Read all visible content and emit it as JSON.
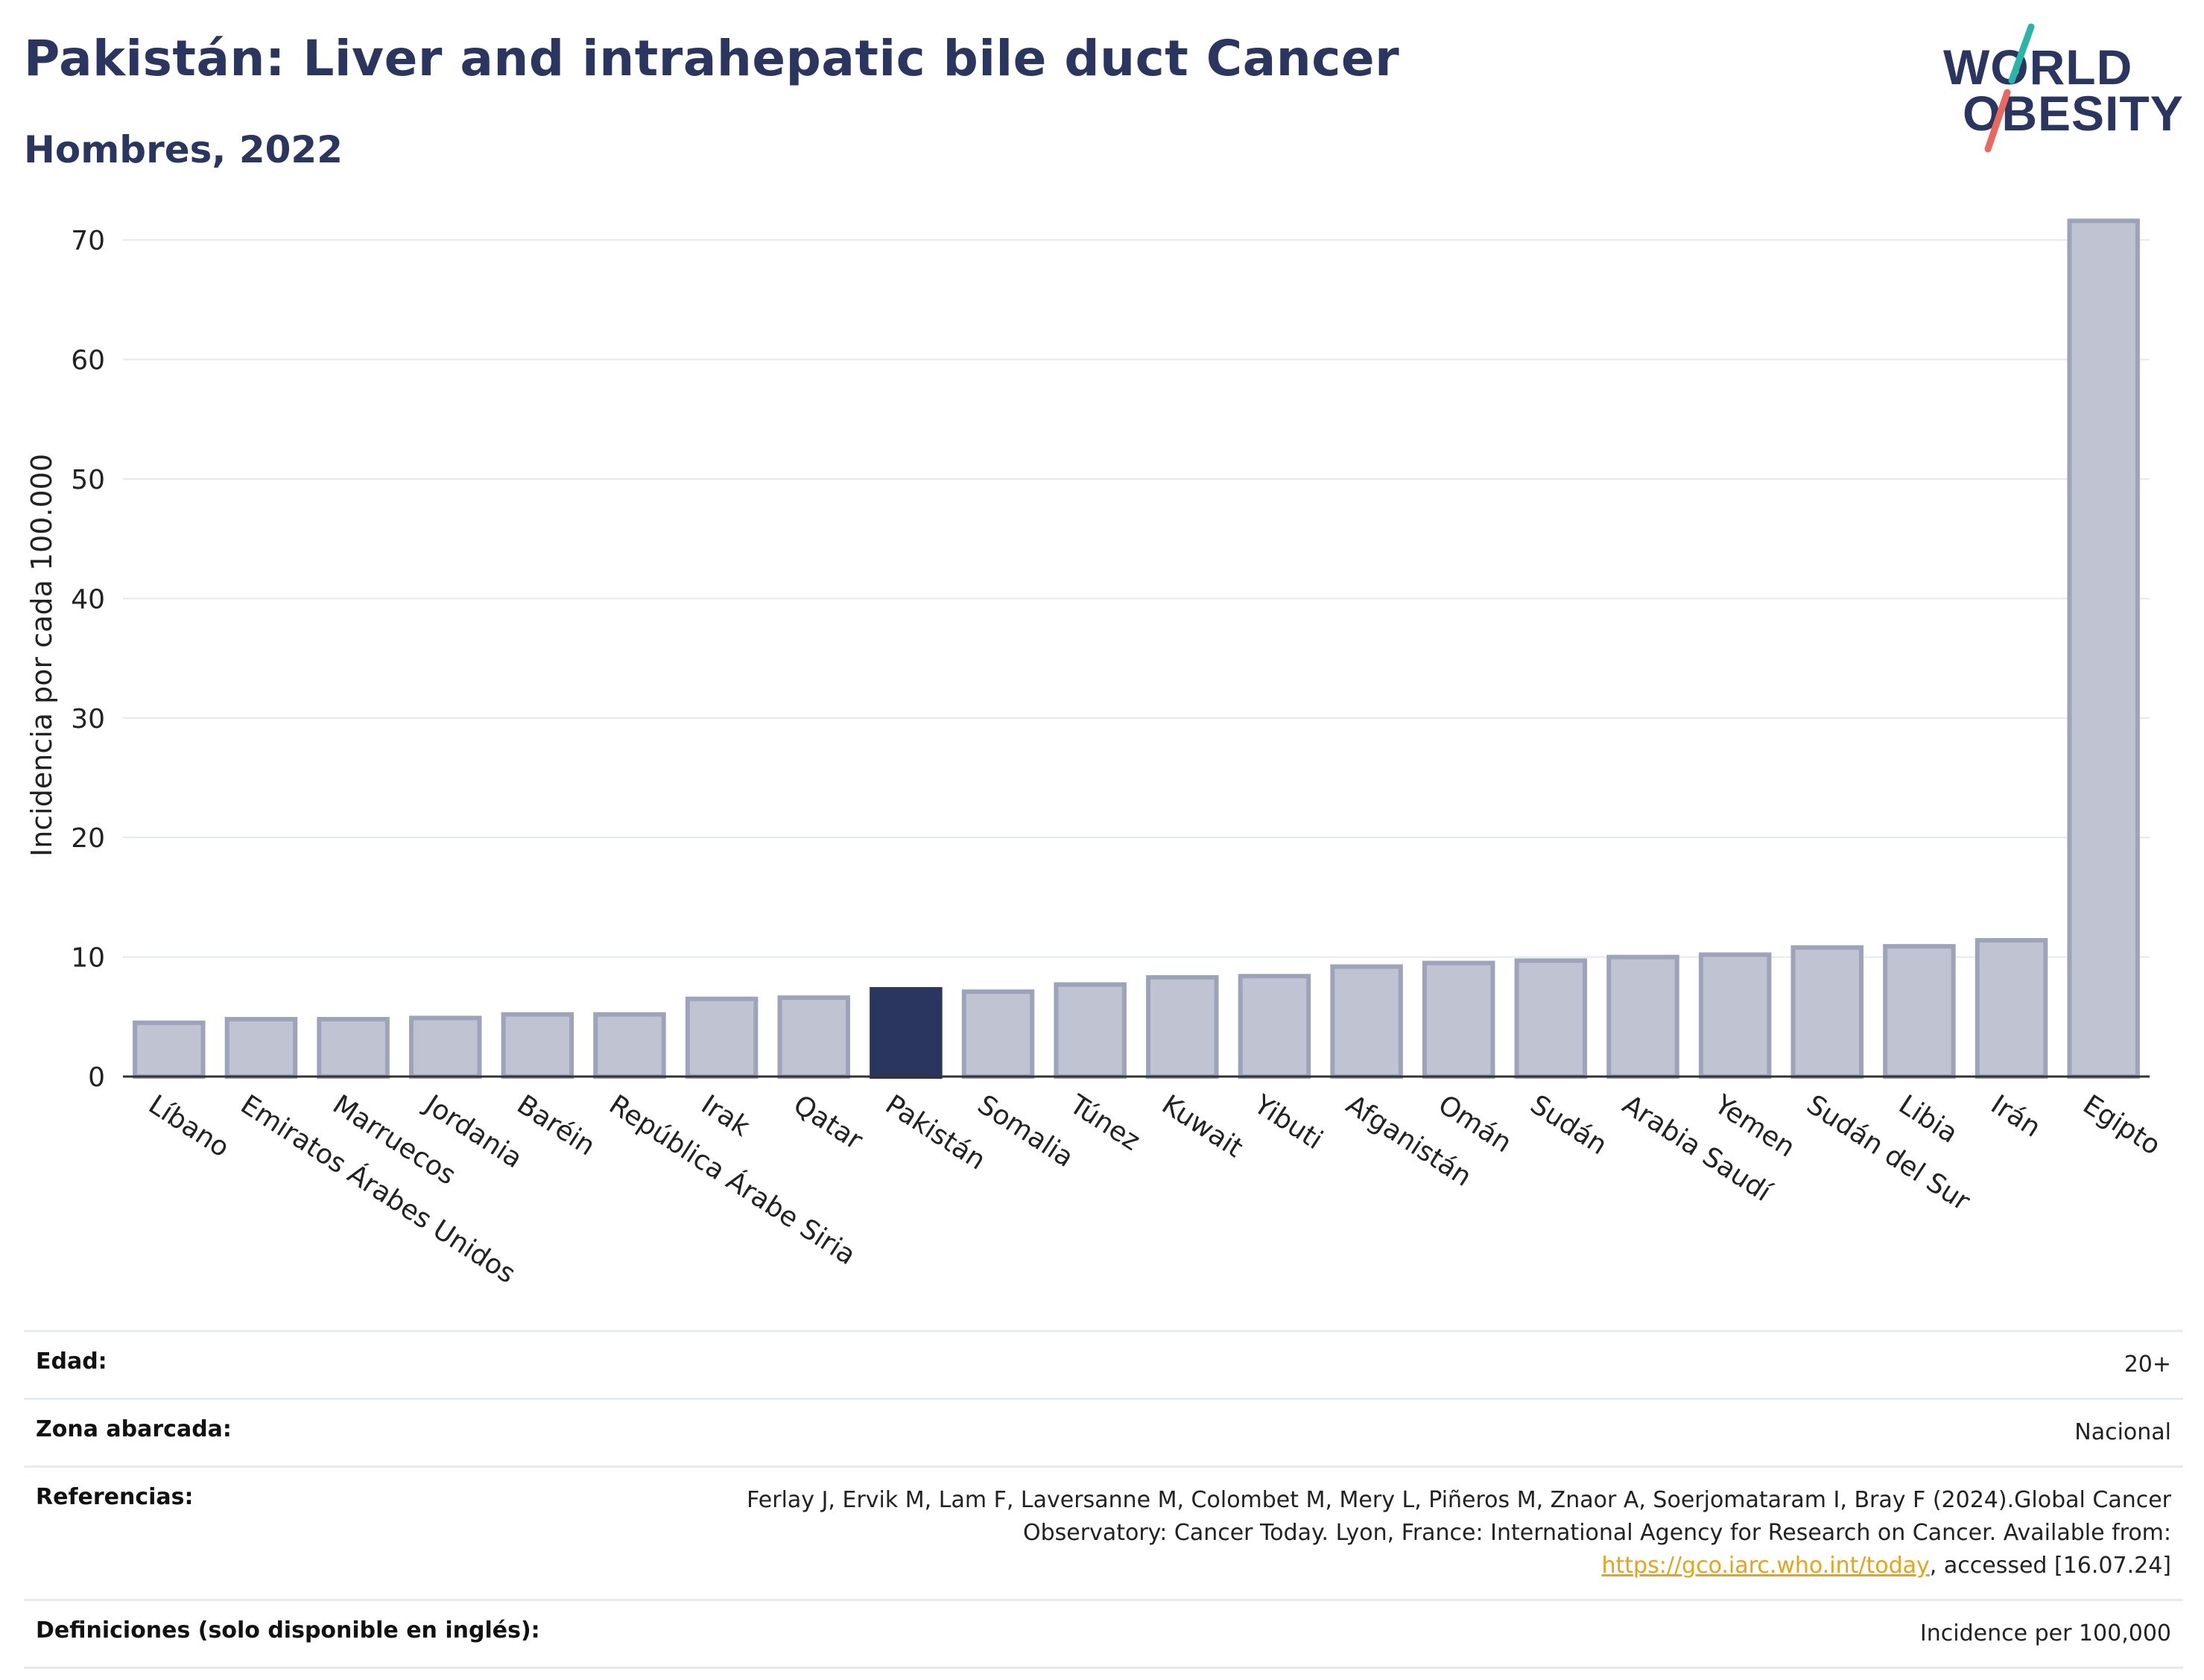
{
  "header": {
    "title": "Pakistán: Liver and intrahepatic bile duct Cancer",
    "subtitle": "Hombres, 2022"
  },
  "logo": {
    "line1": "WORLD",
    "line2": "OBESITY",
    "slash_teal": "#2bb5a9",
    "slash_red": "#e9695d"
  },
  "colors": {
    "bar_default": "#c0c3d2",
    "bar_border": "#9ea3bb",
    "bar_highlight": "#2a3560",
    "grid": "#e6e8ef",
    "axis": "#333333",
    "title": "#2a3560"
  },
  "chart_data": {
    "type": "bar",
    "title": "Pakistán: Liver and intrahepatic bile duct Cancer",
    "subtitle": "Hombres, 2022",
    "xlabel": "",
    "ylabel": "Incidencia por cada 100.000",
    "ylim": [
      0,
      72
    ],
    "yticks": [
      0,
      10,
      20,
      30,
      40,
      50,
      60,
      70
    ],
    "grid": true,
    "highlight": "Pakistán",
    "categories": [
      "Líbano",
      "Emiratos Árabes Unidos",
      "Marruecos",
      "Jordania",
      "Baréin",
      "República Árabe Siria",
      "Irak",
      "Qatar",
      "Pakistán",
      "Somalia",
      "Túnez",
      "Kuwait",
      "Yibuti",
      "Afganistán",
      "Omán",
      "Sudán",
      "Arabia Saudí",
      "Yemen",
      "Sudán del Sur",
      "Libia",
      "Irán",
      "Egipto"
    ],
    "values": [
      4.5,
      4.8,
      4.8,
      4.9,
      5.2,
      5.2,
      6.5,
      6.6,
      7.3,
      7.1,
      7.7,
      8.3,
      8.4,
      9.2,
      9.5,
      9.7,
      10.0,
      10.2,
      10.8,
      10.9,
      11.4,
      71.6
    ]
  },
  "info": {
    "rows": [
      {
        "label": "Edad:",
        "value": "20+"
      },
      {
        "label": "Zona abarcada:",
        "value": "Nacional"
      },
      {
        "label": "Referencias:",
        "value_pre": "Ferlay J, Ervik M, Lam F, Laversanne M, Colombet M, Mery L, Piñeros M, Znaor A, Soerjomataram I, Bray F (2024).Global Cancer Observatory: Cancer Today. Lyon, France: International Agency for Research on Cancer. Available from: ",
        "link": "https://gco.iarc.who.int/today",
        "value_post": ", accessed [16.07.24]"
      },
      {
        "label": "Definiciones (solo disponible en inglés):",
        "value": "Incidence per 100,000"
      }
    ]
  }
}
